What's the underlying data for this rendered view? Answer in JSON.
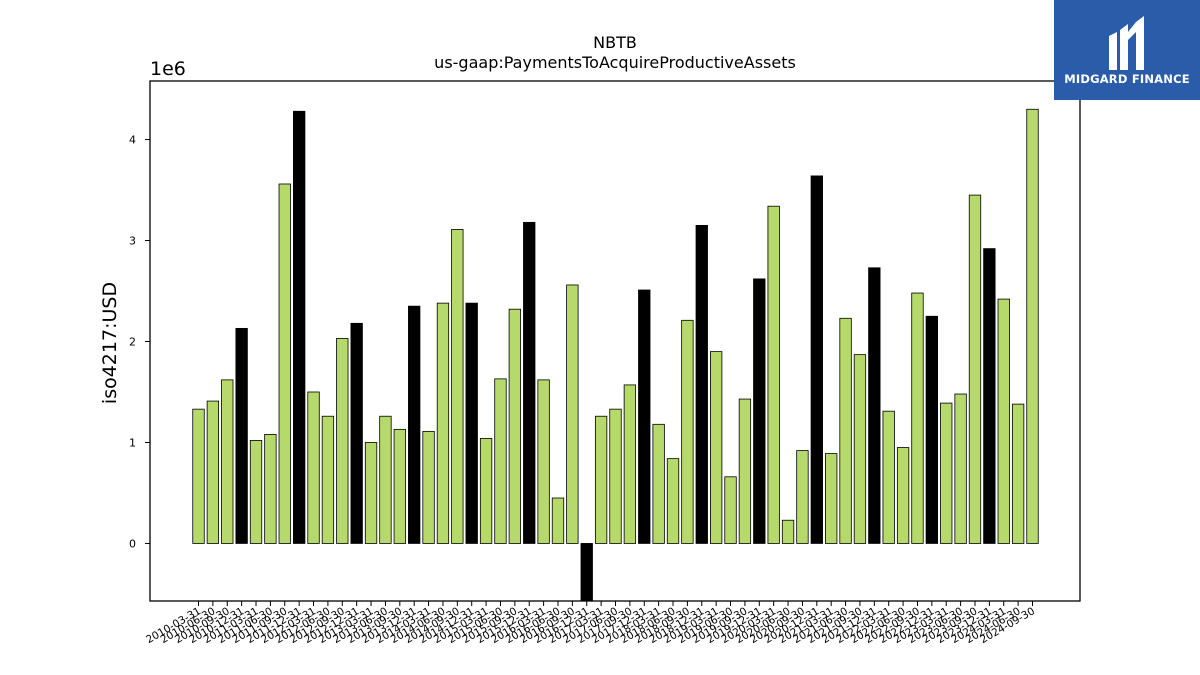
{
  "chart_data": {
    "type": "bar",
    "title": "NBTB",
    "subtitle": "us-gaap:PaymentsToAcquireProductiveAssets",
    "ylabel": "iso4217:USD",
    "xlabel": "",
    "y_multiplier_label": "1e6",
    "ylim": [
      -570000,
      4580000
    ],
    "yticks": [
      0,
      1,
      2,
      3,
      4
    ],
    "grid": false,
    "legend": "none",
    "colors": {
      "q1_q3": "#b5d96a",
      "q4": "#000000"
    },
    "categories": [
      "2010-03-31",
      "2010-06-30",
      "2010-09-30",
      "2010-12-31",
      "2011-03-31",
      "2011-06-30",
      "2011-09-30",
      "2011-12-31",
      "2012-03-31",
      "2012-06-30",
      "2012-09-30",
      "2012-12-31",
      "2013-03-31",
      "2013-06-30",
      "2013-09-30",
      "2013-12-31",
      "2014-03-31",
      "2014-06-30",
      "2014-09-30",
      "2014-12-31",
      "2015-03-31",
      "2015-06-30",
      "2015-09-30",
      "2015-12-31",
      "2016-03-31",
      "2016-06-30",
      "2016-09-30",
      "2016-12-31",
      "2017-03-31",
      "2017-06-30",
      "2017-09-30",
      "2017-12-31",
      "2018-03-31",
      "2018-06-30",
      "2018-09-30",
      "2018-12-31",
      "2019-03-31",
      "2019-06-30",
      "2019-09-30",
      "2019-12-31",
      "2020-03-31",
      "2020-06-30",
      "2020-09-30",
      "2020-12-31",
      "2021-03-31",
      "2021-06-30",
      "2021-09-30",
      "2021-12-31",
      "2022-03-31",
      "2022-06-30",
      "2022-09-30",
      "2022-12-31",
      "2023-03-31",
      "2023-06-30",
      "2023-09-30",
      "2023-12-31",
      "2024-03-31",
      "2024-06-30",
      "2024-09-30"
    ],
    "values": [
      1330000,
      1410000,
      1620000,
      2130000,
      1020000,
      1080000,
      3560000,
      4280000,
      1500000,
      1260000,
      2030000,
      2180000,
      1000000,
      1260000,
      1130000,
      2350000,
      1110000,
      2380000,
      3110000,
      2380000,
      1040000,
      1630000,
      2320000,
      3180000,
      1620000,
      450000,
      2560000,
      -570000,
      1260000,
      1330000,
      1570000,
      2510000,
      1180000,
      840000,
      2210000,
      3150000,
      1900000,
      660000,
      1430000,
      2620000,
      3340000,
      230000,
      920000,
      3640000,
      890000,
      2230000,
      1870000,
      2730000,
      1310000,
      950000,
      2480000,
      2250000,
      1390000,
      1480000,
      3450000,
      2920000,
      2420000,
      1380000,
      4300000
    ]
  },
  "logo": {
    "text": "MIDGARD FINANCE",
    "background": "#2a5caa"
  }
}
